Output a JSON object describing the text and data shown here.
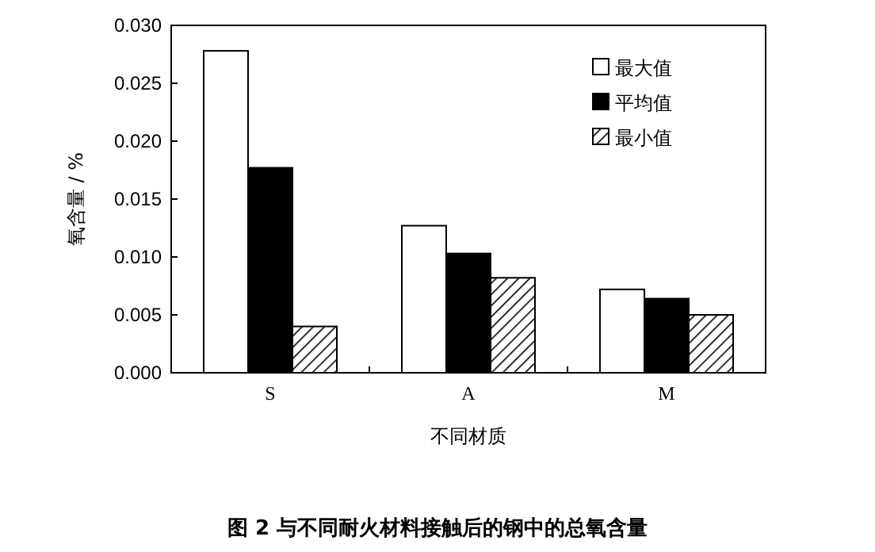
{
  "chart_data": {
    "type": "bar",
    "title": "图 2  与不同耐火材料接触后的钢中的总氧含量",
    "xlabel": "不同材质",
    "ylabel": "氧含量 / %",
    "categories": [
      "S",
      "A",
      "M"
    ],
    "series": [
      {
        "name": "最大值",
        "color": "#ffffff",
        "values": [
          0.0278,
          0.0127,
          0.0072
        ]
      },
      {
        "name": "平均值",
        "color": "#000000",
        "values": [
          0.0177,
          0.0103,
          0.0064
        ]
      },
      {
        "name": "最小值",
        "color": "#000000",
        "values": [
          0.004,
          0.0082,
          0.005
        ]
      }
    ],
    "ylim": [
      0,
      0.03
    ],
    "yticks": [
      {
        "value": 0,
        "label": "0.000"
      },
      {
        "value": 0.005,
        "label": "0.005"
      },
      {
        "value": 0.01,
        "label": "0.010"
      },
      {
        "value": 0.015,
        "label": "0.015"
      },
      {
        "value": 0.02,
        "label": "0.020"
      },
      {
        "value": 0.025,
        "label": "0.025"
      },
      {
        "value": 0.03,
        "label": "0.030"
      }
    ],
    "grid": false,
    "legend": "top right"
  }
}
